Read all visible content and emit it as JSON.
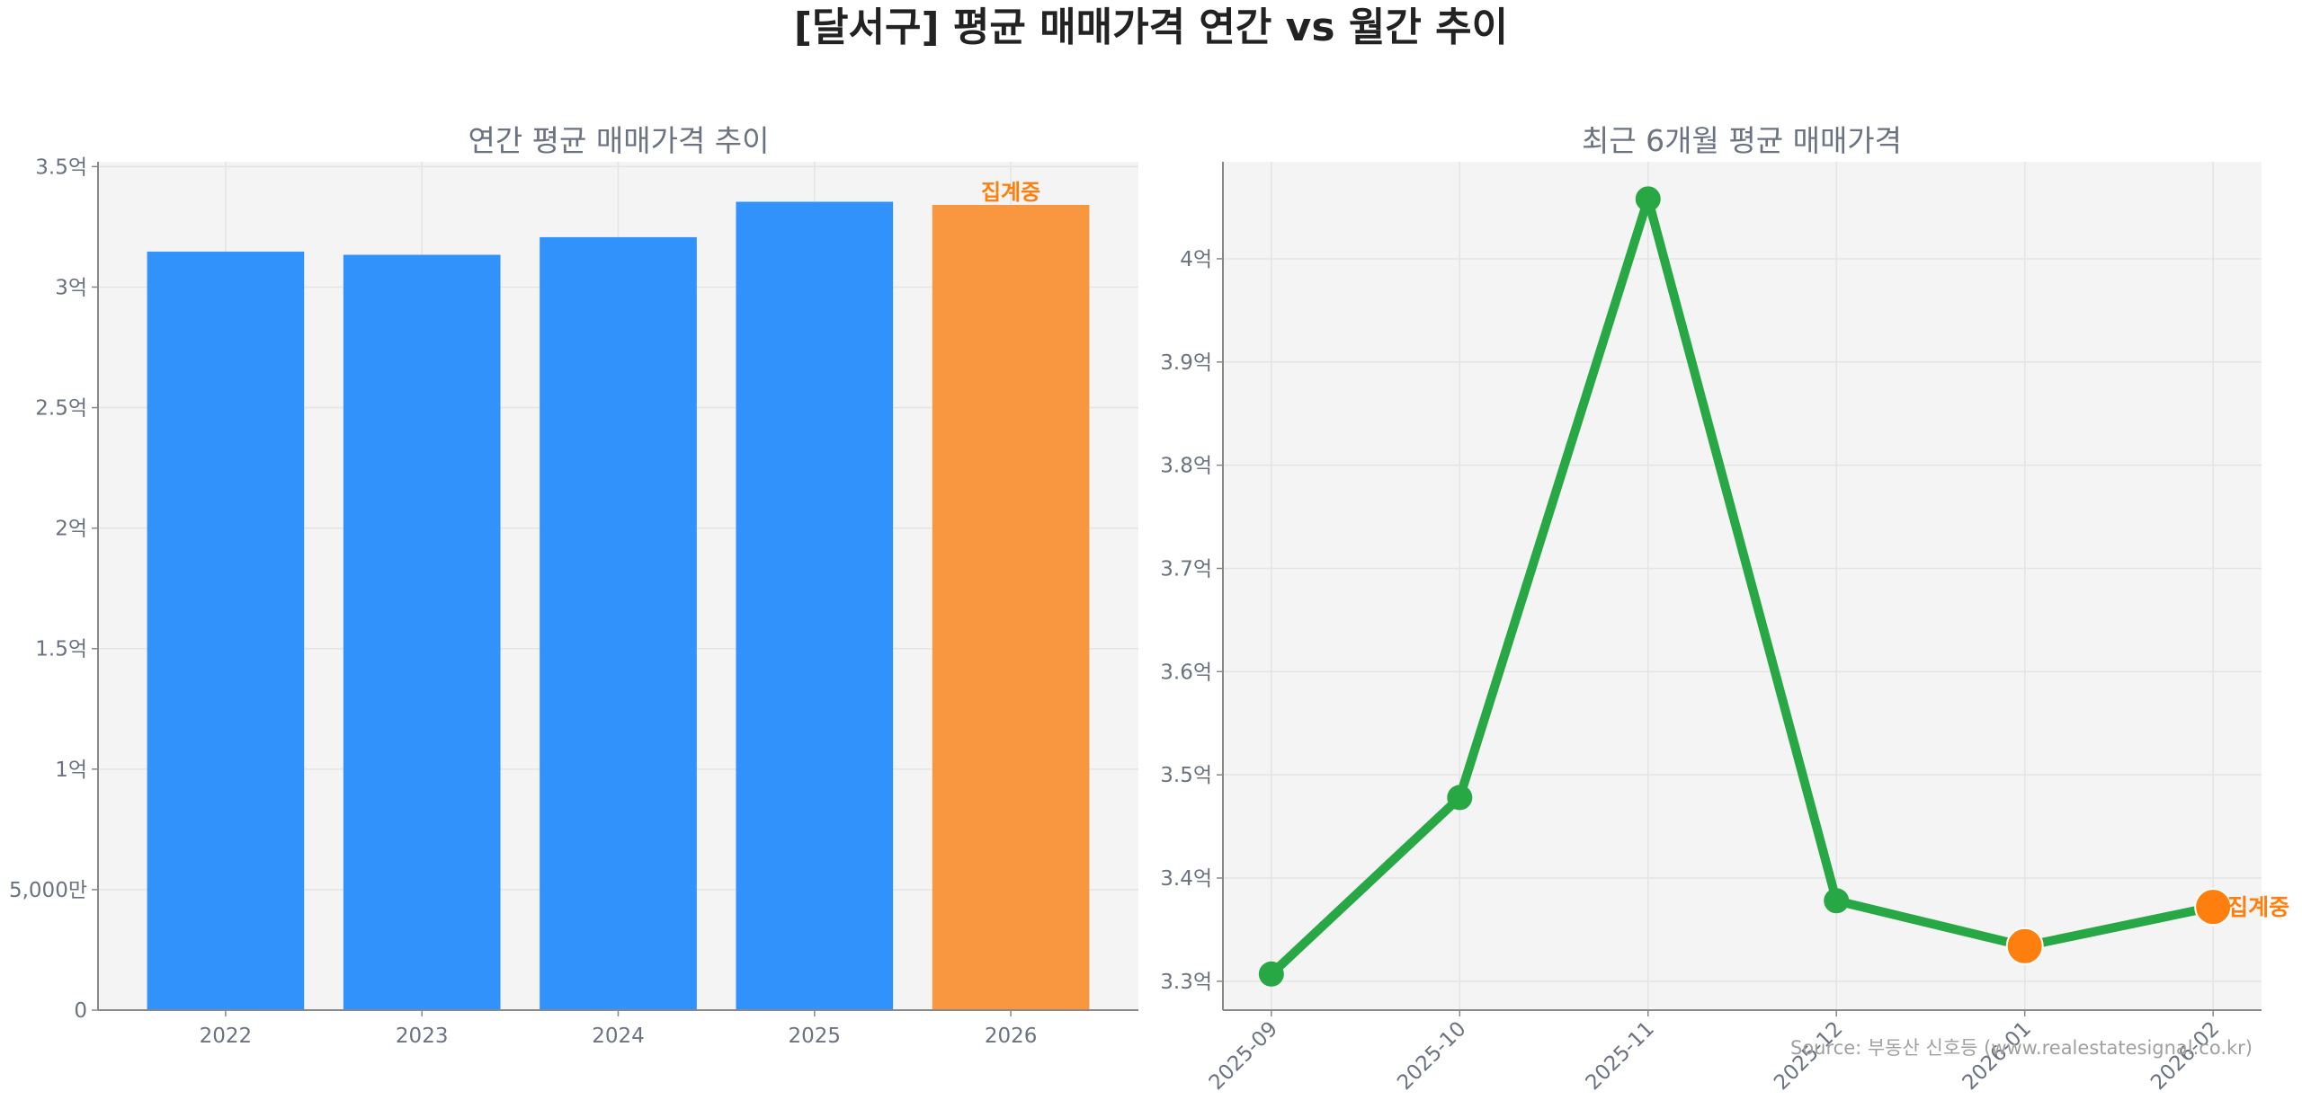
{
  "title": "[달서구] 평균 매매가격 연간 vs 월간 추이",
  "source": "Source: 부동산 신호등 (www.realestatesignal.co.kr)",
  "colors": {
    "bar": "#3092fa",
    "bar_ongoing": "#f99640",
    "line": "#28a745",
    "marker_ongoing": "#ff7f0e",
    "ongoing_label": "#ff7f0e",
    "panel_bg": "#f4f4f4"
  },
  "chart_data": [
    {
      "type": "bar",
      "title": "연간 평균 매매가격 추이",
      "categories": [
        "2022",
        "2023",
        "2024",
        "2025",
        "2026"
      ],
      "values": [
        3.147,
        3.134,
        3.207,
        3.354,
        3.341
      ],
      "unit": "억",
      "ongoing": [
        false,
        false,
        false,
        false,
        true
      ],
      "annotation": "집계중",
      "ylim": [
        0,
        3.52
      ],
      "yticks": [
        0,
        0.5,
        1,
        1.5,
        2,
        2.5,
        3,
        3.5
      ],
      "ytick_labels": [
        "0",
        "5,000만",
        "1억",
        "1.5억",
        "2억",
        "2.5억",
        "3억",
        "3.5억"
      ],
      "grid": true
    },
    {
      "type": "line",
      "title": "최근 6개월 평균 매매가격",
      "x": [
        "2025-09",
        "2025-10",
        "2025-11",
        "2025-12",
        "2026-01",
        "2026-02"
      ],
      "values": [
        3.307,
        3.478,
        4.058,
        3.378,
        3.334,
        3.372
      ],
      "unit": "억",
      "ongoing": [
        false,
        false,
        false,
        false,
        true,
        true
      ],
      "annotation": "집계중",
      "ylim": [
        3.272,
        4.094
      ],
      "yticks": [
        3.3,
        3.4,
        3.5,
        3.6,
        3.7,
        3.8,
        3.9,
        4.0
      ],
      "ytick_labels": [
        "3.3억",
        "3.4억",
        "3.5억",
        "3.6억",
        "3.7억",
        "3.8억",
        "3.9억",
        "4억"
      ],
      "grid": true
    }
  ]
}
